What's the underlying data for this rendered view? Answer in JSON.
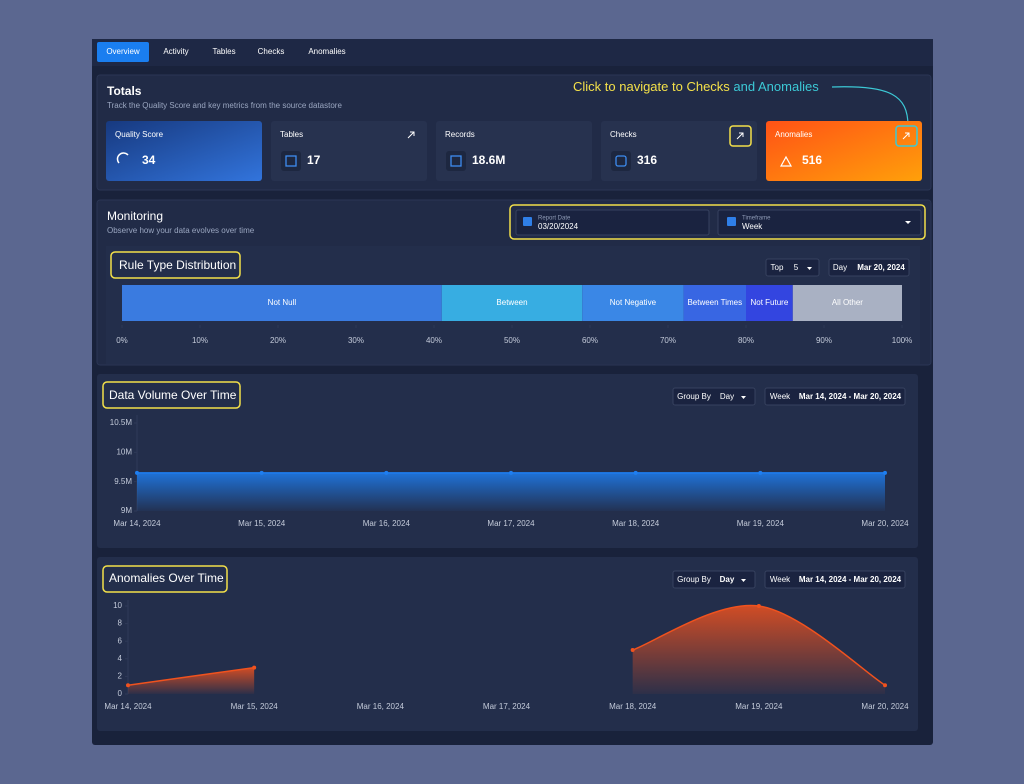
{
  "tabs": [
    "Overview",
    "Activity",
    "Tables",
    "Checks",
    "Anomalies"
  ],
  "totals": {
    "title": "Totals",
    "subtitle": "Track the Quality Score and key metrics from the source datastore",
    "cards": [
      {
        "label": "Quality Score",
        "value": "34"
      },
      {
        "label": "Tables",
        "value": "17"
      },
      {
        "label": "Records",
        "value": "18.6M"
      },
      {
        "label": "Checks",
        "value": "316"
      },
      {
        "label": "Anomalies",
        "value": "516"
      }
    ]
  },
  "annotation": {
    "text": "Click to navigate to Checks",
    "highlight": "and Anomalies"
  },
  "monitoring": {
    "title": "Monitoring",
    "subtitle": "Observe how your data evolves over time",
    "report_date": {
      "label": "Report Date",
      "value": "03/20/2024"
    },
    "timeframe": {
      "label": "Timeframe",
      "value": "Week"
    }
  },
  "chart_data": [
    {
      "type": "stacked_bar",
      "title": "Rule Type Distribution",
      "controls": {
        "top_label": "Top",
        "top_value": 5,
        "day_label": "Day",
        "day_value": "Mar 20, 2024"
      },
      "series": [
        {
          "name": "Not Null",
          "color": "#3a7be0",
          "values": [
            41
          ]
        },
        {
          "name": "Between",
          "color": "#37ade2",
          "values": [
            18
          ]
        },
        {
          "name": "Not Negative",
          "color": "#3a87e6",
          "values": [
            13
          ]
        },
        {
          "name": "Between Times",
          "color": "#3866e3",
          "values": [
            8
          ]
        },
        {
          "name": "Not Future",
          "color": "#3345e0",
          "values": [
            6
          ]
        },
        {
          "name": "All Other",
          "color": "#a9b1c3",
          "values": [
            14
          ]
        }
      ],
      "xlim": [
        0,
        100
      ],
      "xticks": [
        {
          "value": 0,
          "label": "0%"
        },
        {
          "value": 10,
          "label": "10%"
        },
        {
          "value": 20,
          "label": "20%"
        },
        {
          "value": 30,
          "label": "30%"
        },
        {
          "value": 40,
          "label": "40%"
        },
        {
          "value": 50,
          "label": "50%"
        },
        {
          "value": 60,
          "label": "60%"
        },
        {
          "value": 70,
          "label": "70%"
        },
        {
          "value": 80,
          "label": "80%"
        },
        {
          "value": 90,
          "label": "90%"
        },
        {
          "value": 100,
          "label": "100%"
        }
      ]
    },
    {
      "type": "area",
      "title": "Data Volume Over Time",
      "controls": {
        "group_by_label": "Group By",
        "group_by_value": "Day",
        "range_label": "Week",
        "range_value": "Mar 14, 2024 - Mar 20, 2024"
      },
      "categories": [
        "Mar 14, 2024",
        "Mar 15, 2024",
        "Mar 16, 2024",
        "Mar 17, 2024",
        "Mar 18, 2024",
        "Mar 19, 2024",
        "Mar 20, 2024"
      ],
      "series": [
        {
          "color": "#1e7ef0",
          "values": [
            9650000,
            9650000,
            9650000,
            9650000,
            9650000,
            9650000,
            9650000
          ]
        }
      ],
      "ylim": [
        9000000,
        10500000
      ],
      "yticks": [
        {
          "value": 9000000,
          "label": "9M"
        },
        {
          "value": 9500000,
          "label": "9.5M"
        },
        {
          "value": 10000000,
          "label": "10M"
        },
        {
          "value": 10500000,
          "label": "10.5M"
        }
      ]
    },
    {
      "type": "area",
      "title": "Anomalies Over Time",
      "controls": {
        "group_by_label": "Group By",
        "group_by_value": "Day",
        "range_label": "Week",
        "range_value": "Mar 14, 2024 - Mar 20, 2024"
      },
      "categories": [
        "Mar 14, 2024",
        "Mar 15, 2024",
        "Mar 16, 2024",
        "Mar 17, 2024",
        "Mar 18, 2024",
        "Mar 19, 2024",
        "Mar 20, 2024"
      ],
      "series": [
        {
          "color": "#f0521e",
          "values": [
            1,
            3,
            null,
            null,
            5,
            10,
            1
          ]
        }
      ],
      "ylim": [
        0,
        10
      ],
      "yticks": [
        0,
        2,
        4,
        6,
        8,
        10
      ]
    }
  ]
}
